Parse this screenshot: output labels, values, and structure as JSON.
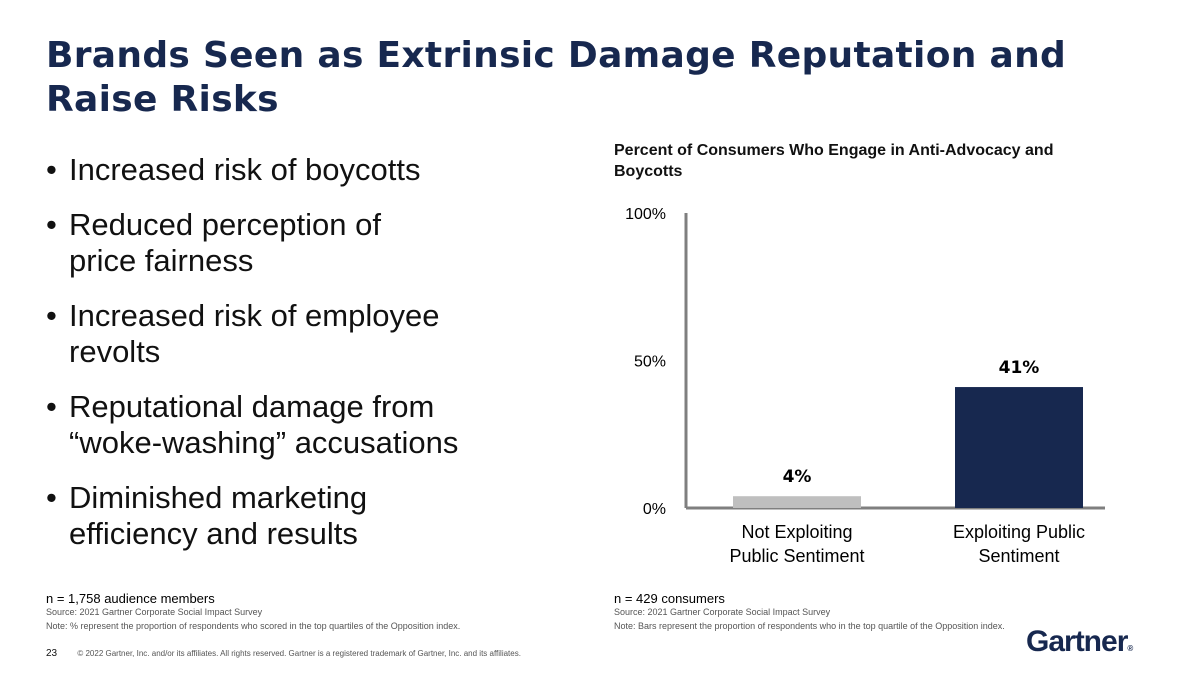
{
  "title": "Brands Seen as Extrinsic Damage Reputation and Raise Risks",
  "bullets": [
    "Increased risk of boycotts",
    "Reduced perception of\nprice fairness",
    "Increased risk of employee\nrevolts",
    "Reputational damage from\n“woke-washing” accusations",
    "Diminished marketing\nefficiency and results"
  ],
  "bullet_glyph": "•",
  "left_notes": {
    "n": "n = 1,758 audience members",
    "source": "Source: 2021 Gartner Corporate Social Impact Survey",
    "note": "Note: % represent the proportion of respondents who scored in the top quartiles of the Opposition index."
  },
  "right_notes": {
    "n": "n = 429 consumers",
    "source": "Source: 2021 Gartner Corporate Social Impact Survey",
    "note": "Note: Bars represent the proportion of respondents who in the top quartile of the Opposition index."
  },
  "footer": {
    "page": "23",
    "copyright": "© 2022 Gartner, Inc. and/or its affiliates. All rights reserved. Gartner is a registered trademark of Gartner, Inc. and its affiliates."
  },
  "logo": {
    "text": "Gartner",
    "mark": "®"
  },
  "colors": {
    "title": "#17284f",
    "bar_exploiting": "#17284f",
    "bar_not_exploiting": "#bfbfbf",
    "axis": "#7f7f7f"
  },
  "chart_data": {
    "type": "bar",
    "title": "Percent of Consumers Who Engage in Anti-Advocacy and Boycotts",
    "categories": [
      "Not Exploiting\nPublic Sentiment",
      "Exploiting Public\nSentiment"
    ],
    "values": [
      4,
      41
    ],
    "data_labels": [
      "4%",
      "41%"
    ],
    "yticks": [
      "0%",
      "50%",
      "100%"
    ],
    "ytick_values": [
      0,
      50,
      100
    ],
    "ylim": [
      0,
      100
    ],
    "grid": false,
    "legend": "none"
  }
}
